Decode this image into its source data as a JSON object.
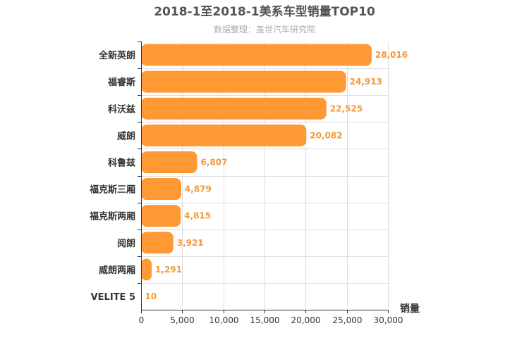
{
  "chart_data": {
    "type": "bar",
    "orientation": "horizontal",
    "title": "2018-1至2018-1美系车型销量TOP10",
    "subtitle": "数据整理：盖世汽车研究院",
    "xlabel": "销量",
    "ylabel": "",
    "xlim": [
      0,
      30000
    ],
    "ticks": [
      0,
      5000,
      10000,
      15000,
      20000,
      25000,
      30000
    ],
    "tick_labels": [
      "0",
      "5,000",
      "10,000",
      "15,000",
      "20,000",
      "25,000",
      "30,000"
    ],
    "grid": true,
    "categories": [
      "全新英朗",
      "福睿斯",
      "科沃兹",
      "威朗",
      "科鲁兹",
      "福克斯三厢",
      "福克斯两厢",
      "阅朗",
      "威朗两厢",
      "VELITE 5"
    ],
    "values": [
      28016,
      24913,
      22525,
      20082,
      6807,
      4879,
      4815,
      3921,
      1291,
      10
    ],
    "value_labels": [
      "28,016",
      "24,913",
      "22,525",
      "20,082",
      "6,807",
      "4,879",
      "4,815",
      "3,921",
      "1,291",
      "10"
    ],
    "bar_color": "#ff9933",
    "label_color": "#f29a3a"
  }
}
